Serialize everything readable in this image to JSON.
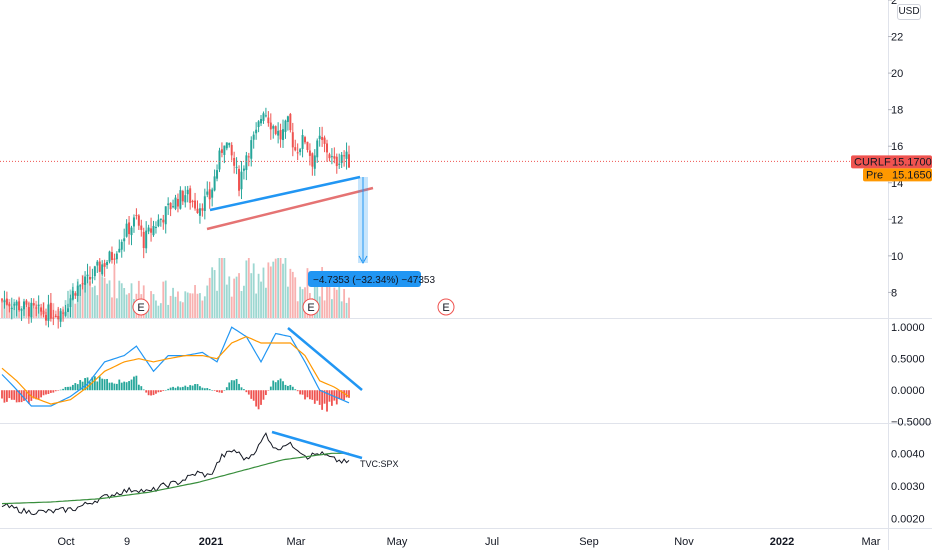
{
  "currency_button": "USD",
  "price_pane": {
    "y_ticks": [
      "2",
      "22",
      "20",
      "18",
      "16",
      "14",
      "12",
      "10",
      "8"
    ],
    "y_range": [
      6.6,
      24.0
    ],
    "last_price": {
      "symbol": "CURLF",
      "value": "15.1700",
      "color": "#ef5350"
    },
    "pre_price": {
      "label": "Pre",
      "value": "15.1650",
      "color": "#ff9800"
    },
    "measure_label": "−4.7353 (−32.34%) −47353",
    "earnings_marker": "E"
  },
  "macd_pane": {
    "y_ticks": [
      "1.0000",
      "0.5000",
      "0.0000",
      "−0.5000"
    ],
    "y_range": [
      -0.52,
      1.13
    ]
  },
  "ratio_pane": {
    "y_ticks": [
      "0.0040",
      "0.0030",
      "0.0020"
    ],
    "y_range": [
      0.0017,
      0.0049
    ],
    "series_label": "TVC:SPX"
  },
  "x_ticks": [
    {
      "label": "Oct",
      "bold": false
    },
    {
      "label": "9",
      "bold": false
    },
    {
      "label": "2021",
      "bold": true
    },
    {
      "label": "Mar",
      "bold": false
    },
    {
      "label": "May",
      "bold": false
    },
    {
      "label": "Jul",
      "bold": false
    },
    {
      "label": "Sep",
      "bold": false
    },
    {
      "label": "Nov",
      "bold": false
    },
    {
      "label": "2022",
      "bold": true
    },
    {
      "label": "Mar",
      "bold": false
    }
  ],
  "colors": {
    "up": "#26a69a",
    "down": "#ef5350",
    "blue": "#2196f3",
    "orange": "#ff9800",
    "green": "#388e3c",
    "grid": "#e0e3eb"
  },
  "chart_data": [
    {
      "type": "candlestick",
      "ylim": [
        6.6,
        24.0
      ],
      "close_anchors": [
        [
          0,
          7.6
        ],
        [
          5,
          7.4
        ],
        [
          10,
          7.1
        ],
        [
          15,
          6.9
        ],
        [
          20,
          6.9
        ],
        [
          25,
          7.0
        ],
        [
          30,
          8.2
        ],
        [
          35,
          8.6
        ],
        [
          40,
          9.4
        ],
        [
          45,
          10.0
        ],
        [
          50,
          11.2
        ],
        [
          55,
          12.0
        ],
        [
          58,
          10.8
        ],
        [
          62,
          11.6
        ],
        [
          66,
          12.2
        ],
        [
          70,
          12.9
        ],
        [
          75,
          13.4
        ],
        [
          80,
          12.7
        ],
        [
          85,
          13.2
        ],
        [
          88,
          14.8
        ],
        [
          91,
          16.4
        ],
        [
          94,
          15.4
        ],
        [
          97,
          14.0
        ],
        [
          100,
          15.6
        ],
        [
          104,
          16.6
        ],
        [
          107,
          18.1
        ],
        [
          110,
          17.3
        ],
        [
          114,
          16.5
        ],
        [
          117,
          17.2
        ],
        [
          120,
          15.8
        ],
        [
          124,
          16.4
        ],
        [
          127,
          15.2
        ],
        [
          130,
          16.3
        ],
        [
          133,
          15.8
        ],
        [
          136,
          15.0
        ],
        [
          139,
          15.6
        ],
        [
          142,
          15.17
        ]
      ],
      "volume_anchors": [
        [
          0,
          0.35
        ],
        [
          20,
          0.15
        ],
        [
          30,
          0.45
        ],
        [
          45,
          0.65
        ],
        [
          60,
          0.4
        ],
        [
          80,
          0.45
        ],
        [
          88,
          0.9
        ],
        [
          95,
          0.55
        ],
        [
          104,
          0.75
        ],
        [
          110,
          0.95
        ],
        [
          120,
          0.55
        ],
        [
          130,
          0.6
        ],
        [
          142,
          0.35
        ]
      ]
    },
    {
      "type": "line",
      "series": [
        {
          "name": "",
          "x": [
            0,
            5,
            12,
            20,
            28,
            35,
            42,
            50,
            55,
            62,
            68,
            75,
            82,
            88,
            94,
            100,
            106,
            112,
            118,
            124,
            130,
            136,
            142
          ],
          "values": [
            0.25,
            0.05,
            -0.25,
            -0.25,
            -0.1,
            0.1,
            0.45,
            0.55,
            0.7,
            0.3,
            0.55,
            0.55,
            0.6,
            0.45,
            1.0,
            0.85,
            0.45,
            0.9,
            0.85,
            0.45,
            0.0,
            -0.1,
            -0.2
          ]
        },
        {
          "name": "",
          "x": [
            0,
            6,
            12,
            20,
            28,
            35,
            42,
            50,
            56,
            62,
            68,
            75,
            82,
            88,
            94,
            100,
            106,
            112,
            118,
            124,
            130,
            136,
            142
          ],
          "values": [
            0.35,
            0.15,
            -0.1,
            -0.22,
            -0.15,
            0.05,
            0.3,
            0.45,
            0.5,
            0.45,
            0.5,
            0.55,
            0.55,
            0.5,
            0.75,
            0.85,
            0.75,
            0.75,
            0.75,
            0.55,
            0.15,
            0.05,
            -0.1
          ]
        }
      ],
      "histogram_anchors": [
        [
          0,
          -0.15
        ],
        [
          10,
          -0.2
        ],
        [
          20,
          -0.05
        ],
        [
          30,
          0.1
        ],
        [
          38,
          0.2
        ],
        [
          45,
          0.12
        ],
        [
          55,
          0.18
        ],
        [
          60,
          -0.1
        ],
        [
          70,
          0.05
        ],
        [
          80,
          0.08
        ],
        [
          90,
          -0.05
        ],
        [
          95,
          0.2
        ],
        [
          105,
          -0.25
        ],
        [
          112,
          0.18
        ],
        [
          118,
          0.08
        ],
        [
          125,
          -0.15
        ],
        [
          132,
          -0.3
        ],
        [
          138,
          -0.15
        ],
        [
          142,
          -0.1
        ]
      ]
    },
    {
      "type": "line",
      "series": [
        {
          "name": "TVC:SPX",
          "x": [
            0,
            10,
            20,
            30,
            40,
            48,
            55,
            60,
            66,
            72,
            80,
            85,
            90,
            95,
            100,
            105,
            108,
            112,
            116,
            120,
            125,
            130,
            136,
            142
          ],
          "values": [
            0.0024,
            0.0022,
            0.0022,
            0.0023,
            0.0026,
            0.0028,
            0.0029,
            0.0028,
            0.003,
            0.0031,
            0.0034,
            0.0033,
            0.0039,
            0.0041,
            0.0038,
            0.0042,
            0.0046,
            0.0041,
            0.0043,
            0.0042,
            0.0039,
            0.004,
            0.0038,
            0.0037
          ]
        },
        {
          "name": "",
          "x": [
            0,
            20,
            40,
            60,
            80,
            100,
            115,
            125,
            135,
            142
          ],
          "values": [
            0.00245,
            0.0025,
            0.0026,
            0.0028,
            0.0031,
            0.0035,
            0.0038,
            0.0039,
            0.004,
            0.004
          ]
        }
      ]
    }
  ]
}
